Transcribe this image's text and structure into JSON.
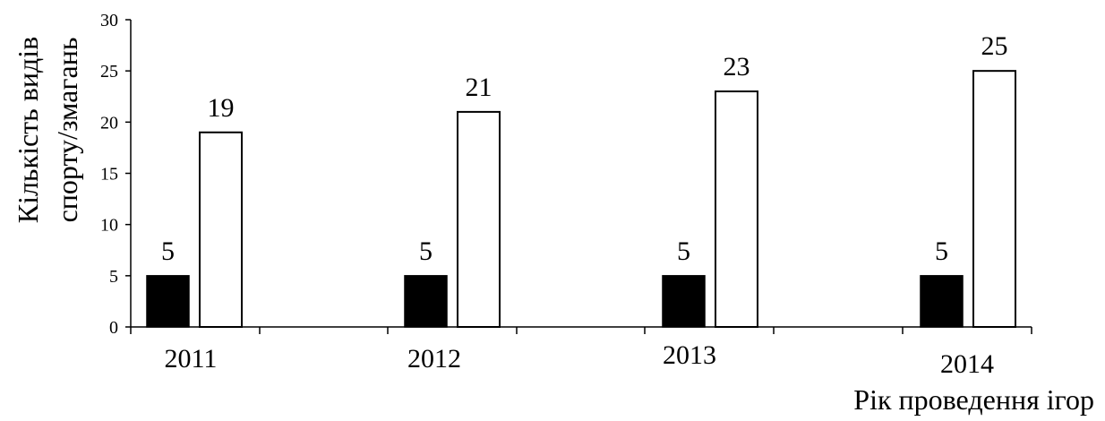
{
  "chart_data": {
    "type": "bar",
    "categories": [
      "2011",
      "2012",
      "2013",
      "2014"
    ],
    "series": [
      {
        "values": [
          5,
          5,
          5,
          5
        ],
        "color": "#000000"
      },
      {
        "values": [
          19,
          21,
          23,
          25
        ],
        "color": "#ffffff"
      }
    ],
    "ylabel_line1": "Кількість видів",
    "ylabel_line2": "спорту/змагань",
    "xlabel": "Рік проведення ігор",
    "yticks": [
      "0",
      "5",
      "10",
      "15",
      "20",
      "25",
      "30"
    ],
    "ylim": [
      0,
      30
    ],
    "grid": false
  }
}
